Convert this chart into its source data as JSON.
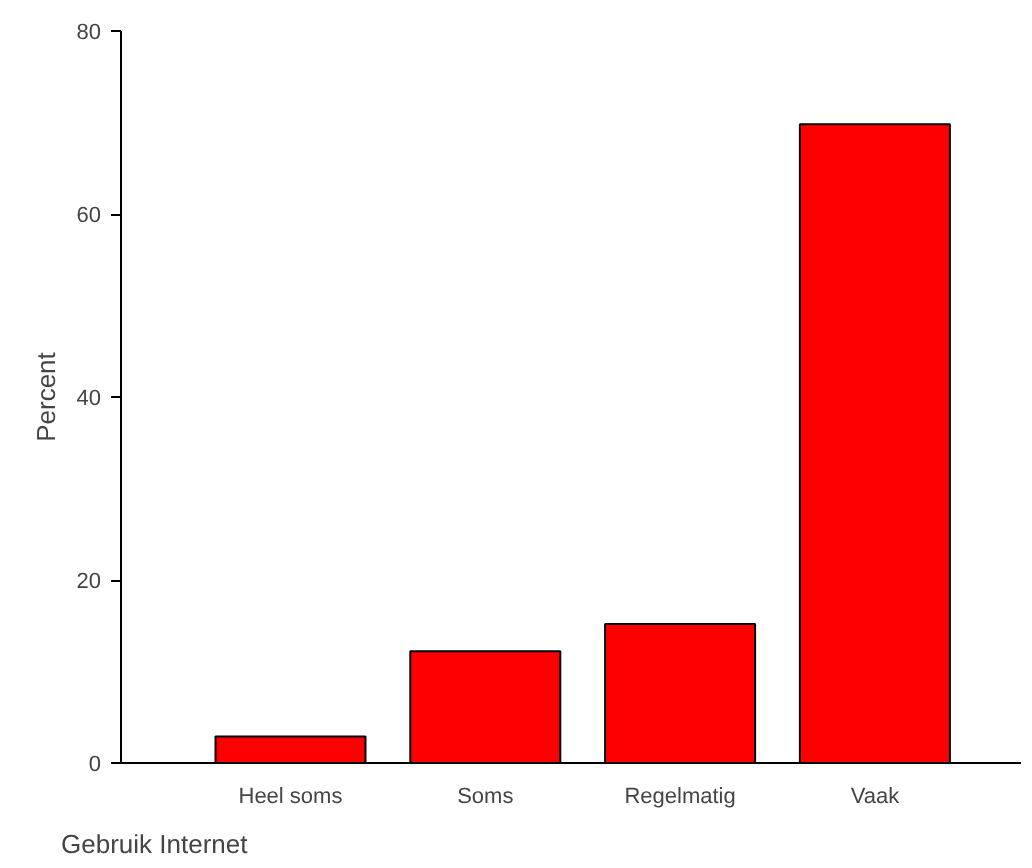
{
  "chart_data": {
    "type": "bar",
    "xlabel": "Gebruik Internet",
    "ylabel": "Percent",
    "categories": [
      "Heel soms",
      "Soms",
      "Regelmatig",
      "Vaak"
    ],
    "values": [
      2.9,
      12.2,
      15.2,
      69.8
    ],
    "color": "#ff0000",
    "ylim": [
      0,
      80
    ],
    "yticks": [
      0,
      20,
      40,
      60,
      80
    ],
    "grid": false
  }
}
